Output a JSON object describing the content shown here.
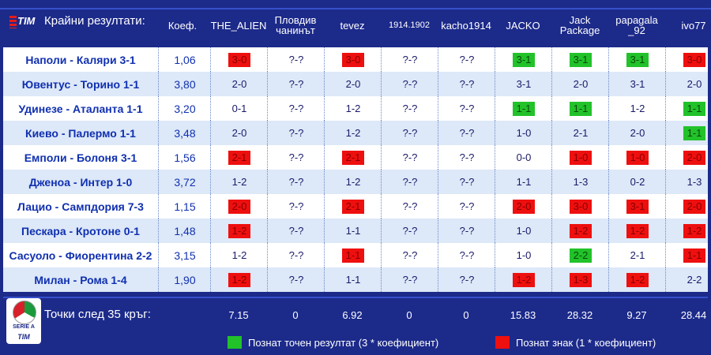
{
  "header": {
    "logo_text": "TIM",
    "title": "Крайни резултати:",
    "coef_label": "Коеф.",
    "players": [
      "THE_ALIEN",
      "Пловдив\nчанинът",
      "tevez",
      "1914.1902",
      "kacho1914",
      "JACKO",
      "Jack\nPackage",
      "papagala\n_92",
      "ivo77"
    ]
  },
  "rows": [
    {
      "match": "Наполи - Каляри 3-1",
      "coef": "1,06",
      "preds": [
        [
          "3-0",
          "red"
        ],
        [
          "?-?",
          ""
        ],
        [
          "3-0",
          "red"
        ],
        [
          "?-?",
          ""
        ],
        [
          "?-?",
          ""
        ],
        [
          "3-1",
          "green"
        ],
        [
          "3-1",
          "green"
        ],
        [
          "3-1",
          "green"
        ],
        [
          "3-0",
          "red"
        ]
      ]
    },
    {
      "match": "Ювентус - Торино 1-1",
      "coef": "3,80",
      "preds": [
        [
          "2-0",
          ""
        ],
        [
          "?-?",
          ""
        ],
        [
          "2-0",
          ""
        ],
        [
          "?-?",
          ""
        ],
        [
          "?-?",
          ""
        ],
        [
          "3-1",
          ""
        ],
        [
          "2-0",
          ""
        ],
        [
          "3-1",
          ""
        ],
        [
          "2-0",
          ""
        ]
      ]
    },
    {
      "match": "Удинезе - Аталанта 1-1",
      "coef": "3,20",
      "preds": [
        [
          "0-1",
          ""
        ],
        [
          "?-?",
          ""
        ],
        [
          "1-2",
          ""
        ],
        [
          "?-?",
          ""
        ],
        [
          "?-?",
          ""
        ],
        [
          "1-1",
          "green"
        ],
        [
          "1-1",
          "green"
        ],
        [
          "1-2",
          ""
        ],
        [
          "1-1",
          "green"
        ]
      ]
    },
    {
      "match": "Киево - Палермо 1-1",
      "coef": "3,48",
      "preds": [
        [
          "2-0",
          ""
        ],
        [
          "?-?",
          ""
        ],
        [
          "1-2",
          ""
        ],
        [
          "?-?",
          ""
        ],
        [
          "?-?",
          ""
        ],
        [
          "1-0",
          ""
        ],
        [
          "2-1",
          ""
        ],
        [
          "2-0",
          ""
        ],
        [
          "1-1",
          "green"
        ]
      ]
    },
    {
      "match": "Емполи - Болоня 3-1",
      "coef": "1,56",
      "preds": [
        [
          "2-1",
          "red"
        ],
        [
          "?-?",
          ""
        ],
        [
          "2-1",
          "red"
        ],
        [
          "?-?",
          ""
        ],
        [
          "?-?",
          ""
        ],
        [
          "0-0",
          ""
        ],
        [
          "1-0",
          "red"
        ],
        [
          "1-0",
          "red"
        ],
        [
          "2-0",
          "red"
        ]
      ]
    },
    {
      "match": "Дженоа - Интер 1-0",
      "coef": "3,72",
      "preds": [
        [
          "1-2",
          ""
        ],
        [
          "?-?",
          ""
        ],
        [
          "1-2",
          ""
        ],
        [
          "?-?",
          ""
        ],
        [
          "?-?",
          ""
        ],
        [
          "1-1",
          ""
        ],
        [
          "1-3",
          ""
        ],
        [
          "0-2",
          ""
        ],
        [
          "1-3",
          ""
        ]
      ]
    },
    {
      "match": "Лацио - Сампдория 7-3",
      "coef": "1,15",
      "preds": [
        [
          "2-0",
          "red"
        ],
        [
          "?-?",
          ""
        ],
        [
          "2-1",
          "red"
        ],
        [
          "?-?",
          ""
        ],
        [
          "?-?",
          ""
        ],
        [
          "2-0",
          "red"
        ],
        [
          "3-0",
          "red"
        ],
        [
          "3-1",
          "red"
        ],
        [
          "2-0",
          "red"
        ]
      ]
    },
    {
      "match": "Пескара - Кротоне 0-1",
      "coef": "1,48",
      "preds": [
        [
          "1-2",
          "red"
        ],
        [
          "?-?",
          ""
        ],
        [
          "1-1",
          ""
        ],
        [
          "?-?",
          ""
        ],
        [
          "?-?",
          ""
        ],
        [
          "1-0",
          ""
        ],
        [
          "1-2",
          "red"
        ],
        [
          "1-2",
          "red"
        ],
        [
          "1-2",
          "red"
        ]
      ]
    },
    {
      "match": "Сасуоло - Фиорентина 2-2",
      "coef": "3,15",
      "preds": [
        [
          "1-2",
          ""
        ],
        [
          "?-?",
          ""
        ],
        [
          "1-1",
          "red"
        ],
        [
          "?-?",
          ""
        ],
        [
          "?-?",
          ""
        ],
        [
          "1-0",
          ""
        ],
        [
          "2-2",
          "green"
        ],
        [
          "2-1",
          ""
        ],
        [
          "1-1",
          "red"
        ]
      ]
    },
    {
      "match": "Милан - Рома 1-4",
      "coef": "1,90",
      "preds": [
        [
          "1-2",
          "red"
        ],
        [
          "?-?",
          ""
        ],
        [
          "1-1",
          ""
        ],
        [
          "?-?",
          ""
        ],
        [
          "?-?",
          ""
        ],
        [
          "1-2",
          "red"
        ],
        [
          "1-3",
          "red"
        ],
        [
          "1-2",
          "red"
        ],
        [
          "2-2",
          ""
        ]
      ]
    }
  ],
  "footer": {
    "seriea_label": "SERIE A",
    "seriea_sponsor": "TIM",
    "points_label": "Точки след 35 кръг:",
    "points": [
      "7.15",
      "0",
      "6.92",
      "0",
      "0",
      "15.83",
      "28.32",
      "9.27",
      "28.44"
    ],
    "legend_green": "Познат точен резултат (3 * коефициент)",
    "legend_red": "Познат знак (1 * коефициент)",
    "colors": {
      "green": "#22c22a",
      "red": "#ee0f0f"
    }
  }
}
